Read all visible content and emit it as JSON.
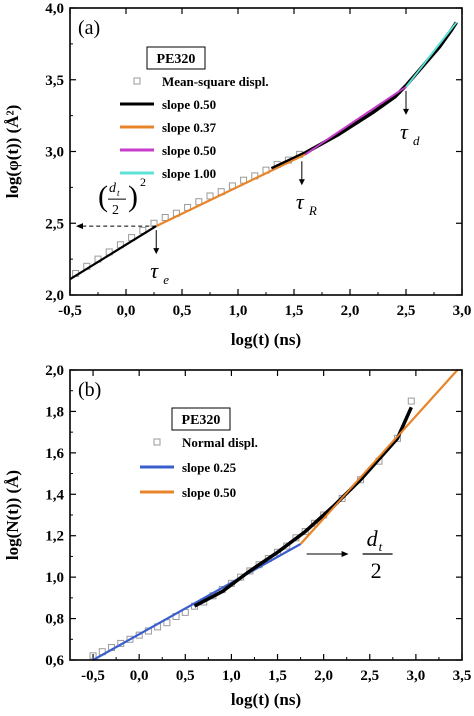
{
  "chart_data": [
    {
      "type": "line",
      "panel_label": "(a)",
      "xlabel": "log(t) (ns)",
      "ylabel": "log(φ(t)) (Å²)",
      "xlim": [
        -0.5,
        3.0
      ],
      "ylim": [
        2.0,
        4.0
      ],
      "x_ticks": [
        -0.5,
        0.0,
        0.5,
        1.0,
        1.5,
        2.0,
        2.5,
        3.0
      ],
      "x_tick_labels": [
        "-0,5",
        "0,0",
        "0,5",
        "1,0",
        "1,5",
        "2,0",
        "2,5",
        "3,0"
      ],
      "y_ticks": [
        2.0,
        2.5,
        3.0,
        3.5,
        4.0
      ],
      "y_tick_labels": [
        "2,0",
        "2,5",
        "3,0",
        "3,5",
        "4,0"
      ],
      "legend_title": "PE320",
      "legend_position": "upper-left",
      "series": [
        {
          "name": "Mean-square displ.",
          "marker": "open-square",
          "color": "#9a9a9a",
          "x": [
            -0.45,
            -0.35,
            -0.25,
            -0.15,
            -0.05,
            0.05,
            0.15,
            0.25,
            0.35,
            0.45,
            0.55,
            0.65,
            0.75,
            0.85,
            0.95,
            1.05,
            1.15,
            1.25,
            1.35,
            1.45,
            1.55
          ],
          "y": [
            2.15,
            2.2,
            2.25,
            2.3,
            2.35,
            2.4,
            2.45,
            2.5,
            2.54,
            2.57,
            2.61,
            2.65,
            2.69,
            2.72,
            2.76,
            2.8,
            2.83,
            2.87,
            2.91,
            2.94,
            2.98
          ]
        },
        {
          "name": "slope 0.50",
          "color": "#000000",
          "x": [
            -0.5,
            0.27
          ],
          "y": [
            2.11,
            2.48
          ]
        },
        {
          "name": "slope 0.37",
          "color": "#e8842a",
          "x": [
            0.27,
            1.6
          ],
          "y": [
            2.48,
            2.98
          ]
        },
        {
          "name": "slope 0.50",
          "color": "#c83ccc",
          "x": [
            1.6,
            2.5
          ],
          "y": [
            2.98,
            3.45
          ]
        },
        {
          "name": "slope 1.00",
          "color": "#5ee2d8",
          "x": [
            2.5,
            2.95
          ],
          "y": [
            3.45,
            3.9
          ]
        }
      ],
      "simulation_curve": {
        "color": "#000000",
        "x": [
          1.3,
          1.6,
          1.9,
          2.2,
          2.4,
          2.5,
          2.6,
          2.7,
          2.8,
          2.9,
          2.95
        ],
        "y": [
          2.88,
          2.99,
          3.12,
          3.27,
          3.38,
          3.46,
          3.55,
          3.64,
          3.73,
          3.84,
          3.9
        ]
      },
      "annotations": [
        {
          "id": "tau_e",
          "text": "τ",
          "sub": "e",
          "x": 0.27,
          "y": 2.48
        },
        {
          "id": "tau_R",
          "text": "τ",
          "sub": "R",
          "x": 1.57,
          "y": 2.96
        },
        {
          "id": "tau_d",
          "text": "τ",
          "sub": "d",
          "x": 2.5,
          "y": 3.45
        },
        {
          "id": "dt_half_sq",
          "text": "d",
          "sub": "t",
          "frac": "2",
          "power": "2",
          "y": 2.48
        }
      ]
    },
    {
      "type": "line",
      "panel_label": "(b)",
      "xlabel": "log(t) (ns)",
      "ylabel": "log(N(t)) (Å)",
      "xlim": [
        -0.75,
        3.5
      ],
      "ylim": [
        0.6,
        2.0
      ],
      "x_ticks": [
        -0.5,
        0.0,
        0.5,
        1.0,
        1.5,
        2.0,
        2.5,
        3.0,
        3.5
      ],
      "x_tick_labels": [
        "-0,5",
        "0,0",
        "0,5",
        "1,0",
        "1,5",
        "2,0",
        "2,5",
        "3,0",
        "3,5"
      ],
      "y_ticks": [
        0.6,
        0.8,
        1.0,
        1.2,
        1.4,
        1.6,
        1.8,
        2.0
      ],
      "y_tick_labels": [
        "0,6",
        "0,8",
        "1,0",
        "1,2",
        "1,4",
        "1,6",
        "1,8",
        "2,0"
      ],
      "legend_title": "PE320",
      "legend_position": "upper-left",
      "series": [
        {
          "name": "Normal displ.",
          "marker": "open-square",
          "color": "#9a9a9a",
          "x": [
            -0.5,
            -0.4,
            -0.3,
            -0.2,
            -0.1,
            0.0,
            0.1,
            0.2,
            0.3,
            0.4,
            0.5,
            0.6,
            0.7,
            0.8,
            0.9,
            1.0,
            1.1,
            1.2,
            1.3,
            1.4,
            1.5,
            1.6,
            1.7,
            1.8,
            1.9,
            2.0,
            2.2,
            2.4,
            2.6,
            2.8,
            2.95
          ],
          "y": [
            0.62,
            0.64,
            0.66,
            0.68,
            0.7,
            0.72,
            0.74,
            0.76,
            0.78,
            0.81,
            0.83,
            0.86,
            0.88,
            0.91,
            0.94,
            0.97,
            1.0,
            1.03,
            1.06,
            1.09,
            1.12,
            1.15,
            1.19,
            1.22,
            1.26,
            1.3,
            1.38,
            1.47,
            1.56,
            1.67,
            1.85
          ]
        },
        {
          "name": "slope 0.25",
          "color": "#3a5fcd",
          "x": [
            -0.5,
            1.75
          ],
          "y": [
            0.6,
            1.16
          ]
        },
        {
          "name": "slope 0.50",
          "color": "#e8842a",
          "x": [
            1.75,
            3.45
          ],
          "y": [
            1.16,
            2.0
          ]
        }
      ],
      "simulation_curve": {
        "color": "#000000",
        "x": [
          0.6,
          0.9,
          1.2,
          1.5,
          1.8,
          2.1,
          2.4,
          2.6,
          2.8,
          2.95
        ],
        "y": [
          0.86,
          0.93,
          1.03,
          1.12,
          1.22,
          1.34,
          1.47,
          1.57,
          1.67,
          1.82
        ]
      },
      "annotations": [
        {
          "id": "dt_half",
          "text": "d",
          "sub": "t",
          "frac": "2",
          "x": 1.75,
          "y": 1.16
        }
      ]
    }
  ]
}
